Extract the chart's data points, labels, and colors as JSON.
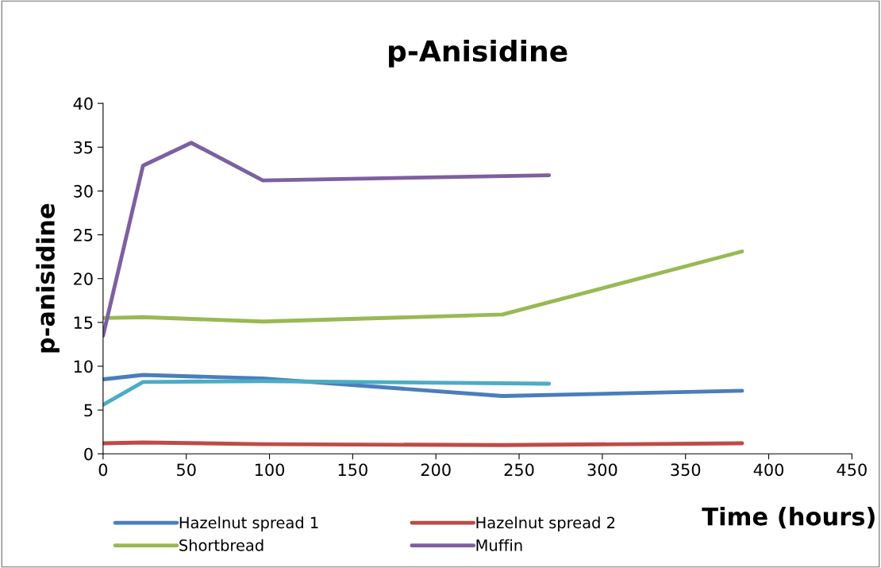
{
  "chart_data": {
    "type": "line",
    "title": "p-Anisidine",
    "xlabel": "Time (hours)",
    "ylabel": "p-anisidine",
    "xlim": [
      0,
      450
    ],
    "xticks": [
      0,
      50,
      100,
      150,
      200,
      250,
      300,
      350,
      400,
      450
    ],
    "ylim": [
      0,
      40
    ],
    "yticks": [
      0,
      5,
      10,
      15,
      20,
      25,
      30,
      35,
      40
    ],
    "grid": false,
    "legend": "bottom",
    "marker": "none",
    "line_style": "solid",
    "series": [
      {
        "name": "Hazelnut spread 1",
        "color": "#4a7ebb",
        "x": [
          0,
          24,
          96,
          240,
          384
        ],
        "values": [
          8.5,
          9.0,
          8.6,
          6.6,
          7.2
        ]
      },
      {
        "name": "Hazelnut spread 2",
        "color": "#be4b48",
        "x": [
          0,
          24,
          96,
          240,
          384
        ],
        "values": [
          1.2,
          1.3,
          1.1,
          1.0,
          1.2
        ]
      },
      {
        "name": "Shortbread",
        "color": "#98b954",
        "x": [
          0,
          24,
          96,
          240,
          384
        ],
        "values": [
          15.5,
          15.6,
          15.1,
          15.9,
          23.1
        ]
      },
      {
        "name": "Muffin",
        "color": "#7d60a0",
        "x": [
          0,
          24,
          53,
          96,
          268
        ],
        "values": [
          13.5,
          32.9,
          35.5,
          31.2,
          31.8
        ]
      },
      {
        "color": "#4bacc6",
        "x": [
          0,
          24,
          96,
          268
        ],
        "values": [
          5.6,
          8.2,
          8.3,
          8.0
        ]
      }
    ]
  }
}
